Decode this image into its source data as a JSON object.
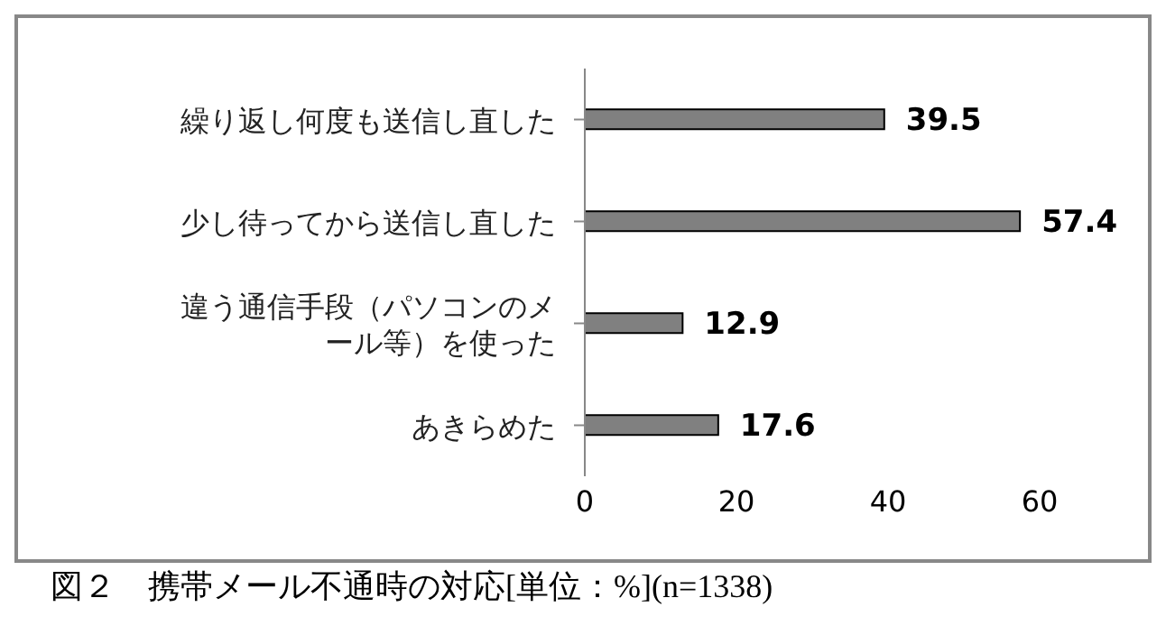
{
  "chart_data": {
    "type": "bar",
    "orientation": "horizontal",
    "categories": [
      "繰り返し何度も送信し直した",
      "少し待ってから送信し直した",
      "違う通信手段（パソコンのメール等）を使った",
      "あきらめた"
    ],
    "values": [
      39.5,
      57.4,
      12.9,
      17.6
    ],
    "color": "#808080",
    "xlim": [
      0,
      60
    ],
    "xticks": [
      0,
      20,
      40,
      60
    ],
    "data_labels": true,
    "annotations": [
      "図２　携帯メール不通時の対応[単位：%](n=1338)"
    ]
  }
}
